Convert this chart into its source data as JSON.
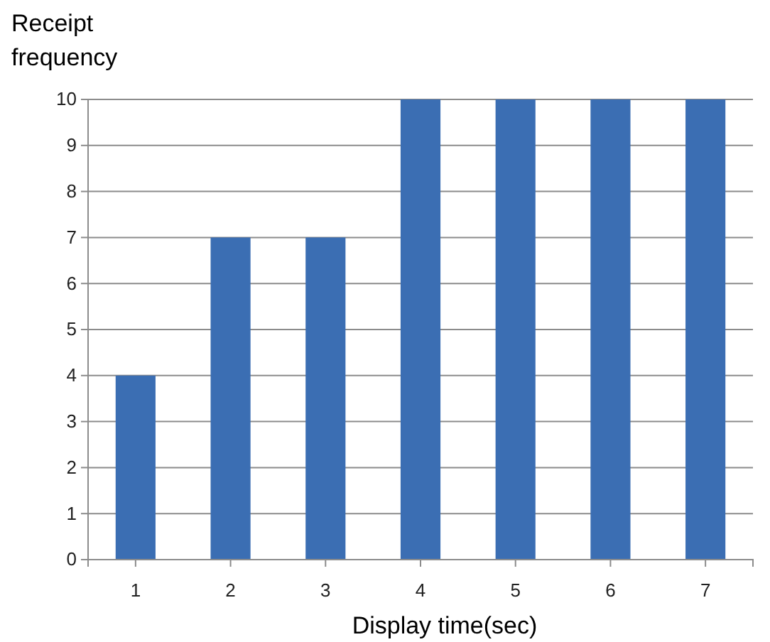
{
  "chart_data": {
    "type": "bar",
    "xlabel": "Display time(sec)",
    "ylabel": "Receipt frequency",
    "categories": [
      "1",
      "2",
      "3",
      "4",
      "5",
      "6",
      "7"
    ],
    "values": [
      4,
      7,
      7,
      10,
      10,
      10,
      10
    ],
    "color": "#3b6eb3",
    "ylim": [
      0,
      10
    ],
    "yticks": [
      0,
      1,
      2,
      3,
      4,
      5,
      6,
      7,
      8,
      9,
      10
    ],
    "grid": "y"
  }
}
